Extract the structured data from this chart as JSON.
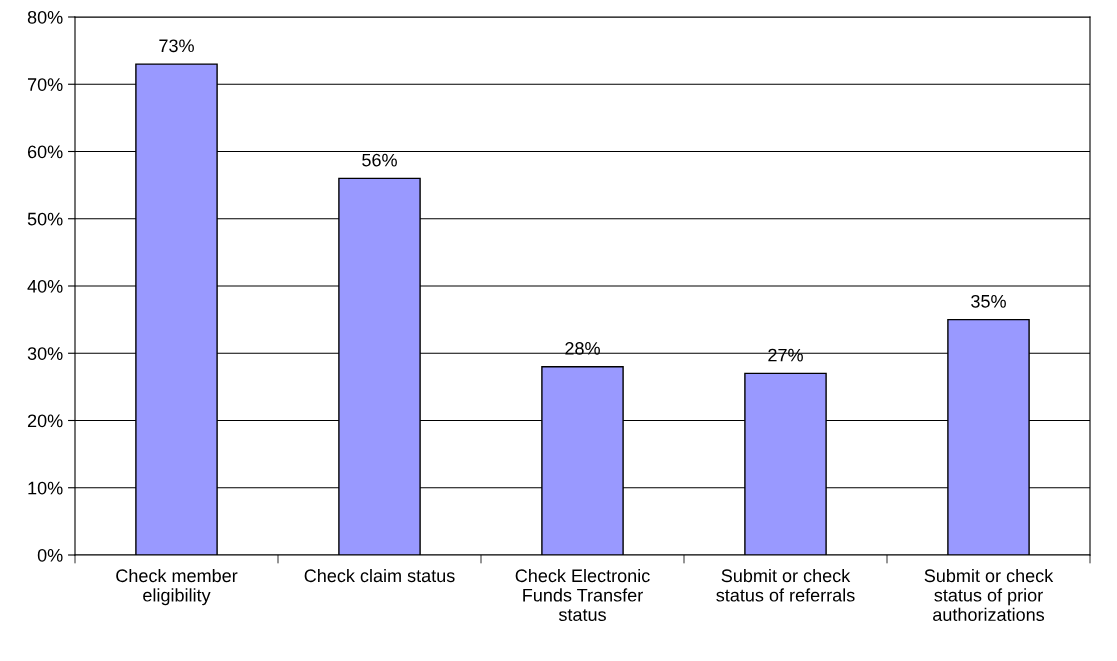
{
  "chart_data": {
    "type": "bar",
    "categories": [
      "Check member eligibility",
      "Check claim status",
      "Check Electronic Funds Transfer status",
      "Submit or check status of referrals",
      "Submit or check status of prior authorizations"
    ],
    "values": [
      73,
      56,
      28,
      27,
      35
    ],
    "value_labels": [
      "73%",
      "56%",
      "28%",
      "27%",
      "35%"
    ],
    "color": "#9999ff",
    "ylim": [
      0,
      80
    ],
    "yticks": [
      {
        "value": 0,
        "label": "0%"
      },
      {
        "value": 10,
        "label": "10%"
      },
      {
        "value": 20,
        "label": "20%"
      },
      {
        "value": 30,
        "label": "30%"
      },
      {
        "value": 40,
        "label": "40%"
      },
      {
        "value": 50,
        "label": "50%"
      },
      {
        "value": 60,
        "label": "60%"
      },
      {
        "value": 70,
        "label": "70%"
      },
      {
        "value": 80,
        "label": "80%"
      }
    ],
    "grid": "y",
    "legend": false
  }
}
